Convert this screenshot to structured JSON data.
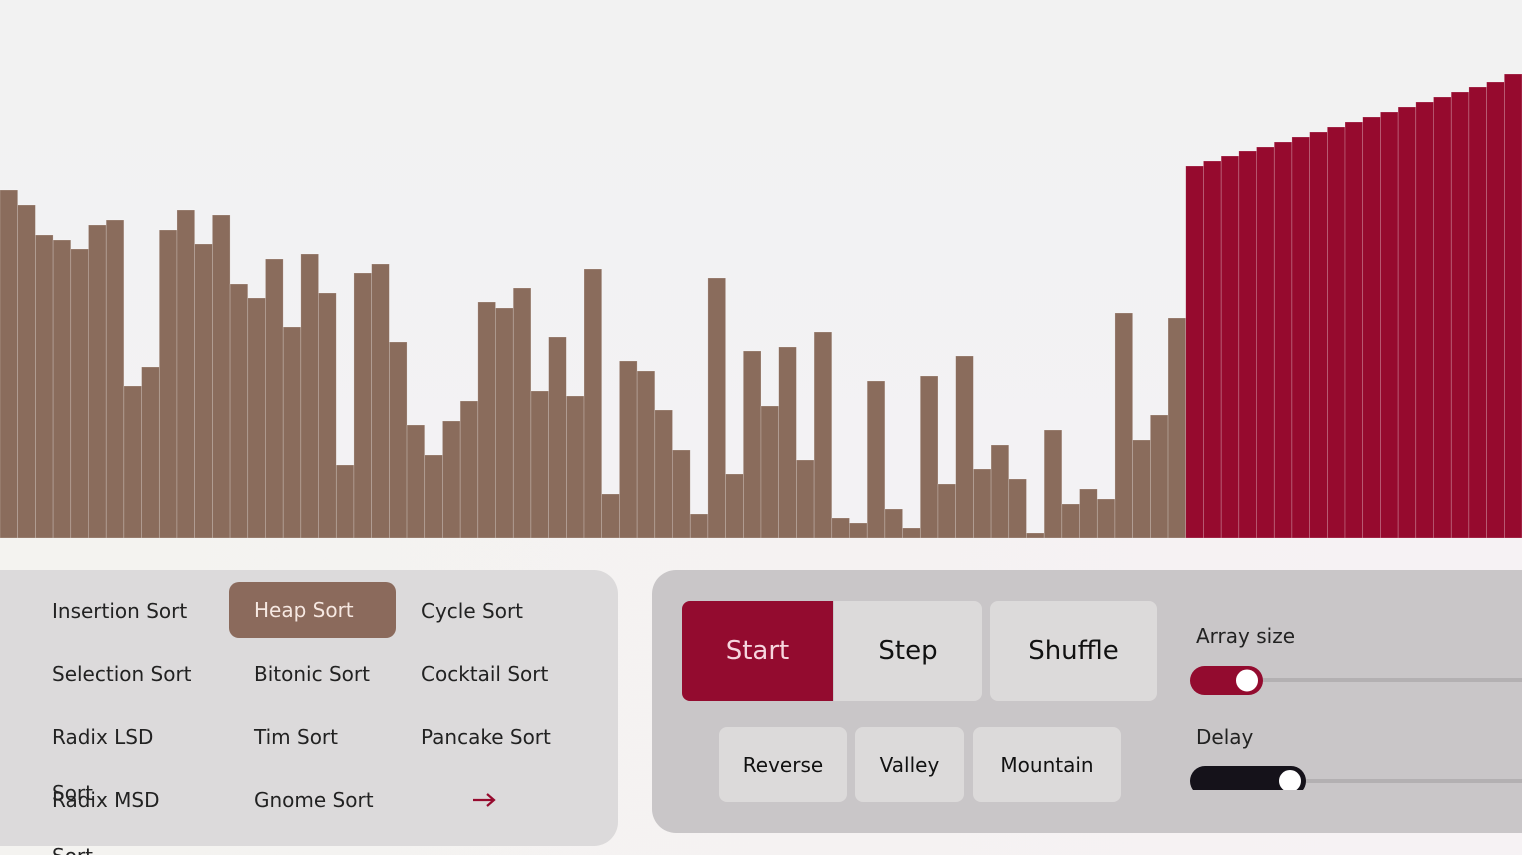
{
  "array": {
    "unsorted": {
      "color": "#8a6c5c",
      "values": [
        348,
        333,
        303,
        298,
        289,
        313,
        318,
        152,
        171,
        308,
        328,
        294,
        323,
        254,
        240,
        279,
        211,
        284,
        245,
        73,
        265,
        274,
        196,
        113,
        83,
        117,
        137,
        236,
        230,
        250,
        147,
        201,
        142,
        269,
        44,
        177,
        167,
        128,
        88,
        24,
        260,
        64,
        187,
        132,
        191,
        78,
        206,
        20,
        15,
        157,
        29,
        10,
        162,
        54,
        182,
        69,
        93,
        59,
        5,
        108,
        34,
        49,
        39,
        225,
        98,
        123,
        220
      ]
    },
    "sorted": {
      "color": "#960a2e",
      "values": [
        372,
        377,
        382,
        387,
        391,
        396,
        401,
        406,
        411,
        416,
        421,
        426,
        431,
        436,
        441,
        446,
        451,
        456,
        464
      ]
    }
  },
  "algorithms": [
    [
      "Insertion Sort",
      "Heap Sort",
      "Cycle Sort"
    ],
    [
      "Selection Sort",
      "Bitonic Sort",
      "Cocktail Sort"
    ],
    [
      "Radix LSD Sort",
      "Tim Sort",
      "Pancake Sort"
    ],
    [
      "Radix MSD Sort",
      "Gnome Sort"
    ]
  ],
  "controls": {
    "start": "Start",
    "step": "Step",
    "shuffle": "Shuffle",
    "reverse": "Reverse",
    "valley": "Valley",
    "mountain": "Mountain",
    "array_size": "Array size",
    "delay": "Delay"
  }
}
